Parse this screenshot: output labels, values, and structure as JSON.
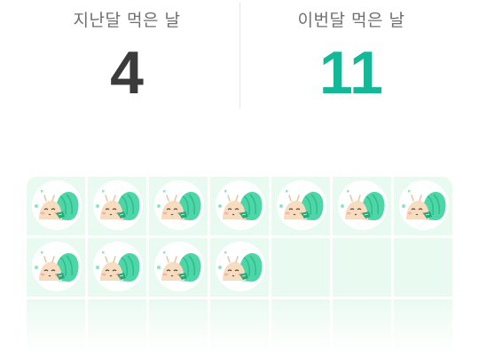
{
  "stats": {
    "last_month": {
      "label": "지난달 먹은 날",
      "value": "4"
    },
    "this_month": {
      "label": "이번달 먹은 날",
      "value": "11"
    }
  },
  "calendar": {
    "columns": 7,
    "rows": 3,
    "eaten_days": 11,
    "sticker_icon": "snail-character-icon",
    "colors": {
      "cell_background": "#e9faf1",
      "accent": "#14b896",
      "last_month_value": "#3b3b3b"
    }
  }
}
